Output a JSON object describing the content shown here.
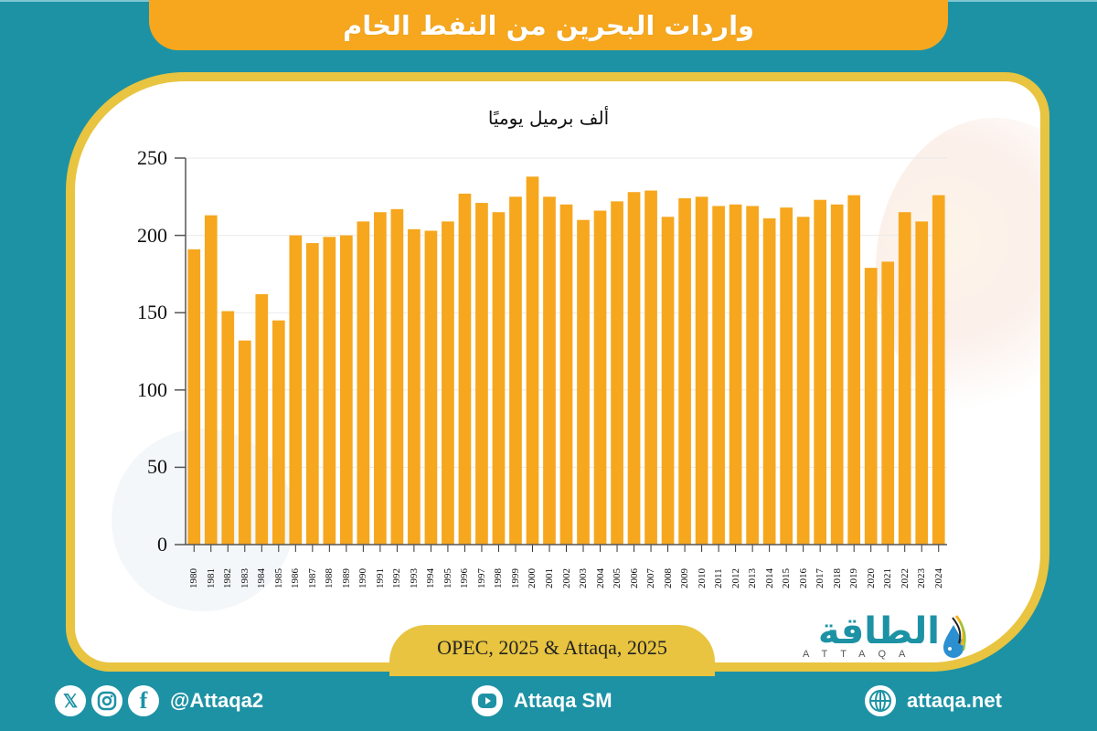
{
  "header": {
    "title": "واردات البحرين من النفط الخام"
  },
  "chart_data": {
    "type": "bar",
    "title": "واردات البحرين من النفط الخام",
    "ylabel": "ألف برميل يوميًا",
    "xlabel": "",
    "ylim": [
      0,
      250
    ],
    "yticks": [
      0,
      50,
      100,
      150,
      200,
      250
    ],
    "grid": true,
    "legend": null,
    "bar_color": "#f6a71e",
    "categories": [
      "1980",
      "1981",
      "1982",
      "1983",
      "1984",
      "1985",
      "1986",
      "1987",
      "1988",
      "1989",
      "1990",
      "1991",
      "1992",
      "1993",
      "1994",
      "1995",
      "1996",
      "1997",
      "1998",
      "1999",
      "2000",
      "2001",
      "2002",
      "2003",
      "2004",
      "2005",
      "2006",
      "2007",
      "2008",
      "2009",
      "2010",
      "2011",
      "2012",
      "2013",
      "2014",
      "2015",
      "2016",
      "2017",
      "2018",
      "2019",
      "2020",
      "2021",
      "2022",
      "2023",
      "2024"
    ],
    "values": [
      191,
      213,
      151,
      132,
      162,
      145,
      200,
      195,
      199,
      200,
      209,
      215,
      217,
      204,
      203,
      209,
      227,
      221,
      215,
      225,
      238,
      225,
      220,
      210,
      216,
      222,
      228,
      229,
      212,
      224,
      225,
      219,
      220,
      219,
      211,
      218,
      212,
      223,
      220,
      226,
      179,
      183,
      215,
      209,
      226
    ]
  },
  "source": {
    "text": "OPEC, 2025 & Attaqa, 2025"
  },
  "logo": {
    "arabic": "الطاقة",
    "latin": "ATTAQA"
  },
  "footer": {
    "social_handle": "@Attaqa2",
    "youtube": "Attaqa SM",
    "website": "attaqa.net",
    "icons": [
      "x-icon",
      "instagram-icon",
      "facebook-icon",
      "youtube-icon",
      "globe-icon"
    ]
  },
  "colors": {
    "background": "#1d92a5",
    "banner": "#f6a71e",
    "frame": "#e8c440",
    "bars": "#f6a71e"
  }
}
